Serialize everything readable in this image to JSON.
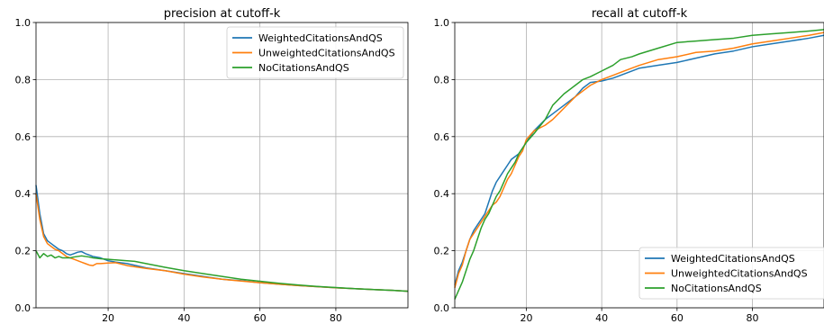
{
  "chart_data": [
    {
      "type": "line",
      "title": "precision at cutoff-k",
      "xlabel": "",
      "ylabel": "",
      "xlim": [
        1,
        99
      ],
      "ylim": [
        0.0,
        1.0
      ],
      "xticks": [
        20,
        40,
        60,
        80
      ],
      "yticks": [
        0.0,
        0.2,
        0.4,
        0.6,
        0.8,
        1.0
      ],
      "grid": true,
      "legend_position": "top-right",
      "series": [
        {
          "name": "WeightedCitationsAndQS",
          "color": "#1f77b4",
          "points": [
            [
              1,
              0.43
            ],
            [
              2,
              0.33
            ],
            [
              3,
              0.26
            ],
            [
              4,
              0.235
            ],
            [
              5,
              0.225
            ],
            [
              6,
              0.215
            ],
            [
              7,
              0.205
            ],
            [
              8,
              0.2
            ],
            [
              9,
              0.19
            ],
            [
              10,
              0.185
            ],
            [
              11,
              0.19
            ],
            [
              12,
              0.195
            ],
            [
              13,
              0.197
            ],
            [
              14,
              0.19
            ],
            [
              15,
              0.185
            ],
            [
              16,
              0.18
            ],
            [
              18,
              0.175
            ],
            [
              20,
              0.165
            ],
            [
              22,
              0.16
            ],
            [
              25,
              0.155
            ],
            [
              30,
              0.14
            ],
            [
              35,
              0.13
            ],
            [
              40,
              0.12
            ],
            [
              45,
              0.11
            ],
            [
              50,
              0.1
            ],
            [
              55,
              0.095
            ],
            [
              60,
              0.088
            ],
            [
              65,
              0.083
            ],
            [
              70,
              0.078
            ],
            [
              75,
              0.074
            ],
            [
              80,
              0.07
            ],
            [
              85,
              0.067
            ],
            [
              90,
              0.064
            ],
            [
              95,
              0.061
            ],
            [
              99,
              0.058
            ]
          ]
        },
        {
          "name": "UnweightedCitationsAndQS",
          "color": "#ff7f0e",
          "points": [
            [
              1,
              0.4
            ],
            [
              2,
              0.31
            ],
            [
              3,
              0.25
            ],
            [
              4,
              0.225
            ],
            [
              5,
              0.215
            ],
            [
              6,
              0.205
            ],
            [
              7,
              0.2
            ],
            [
              8,
              0.19
            ],
            [
              9,
              0.18
            ],
            [
              10,
              0.175
            ],
            [
              11,
              0.17
            ],
            [
              12,
              0.165
            ],
            [
              13,
              0.16
            ],
            [
              14,
              0.155
            ],
            [
              15,
              0.15
            ],
            [
              16,
              0.148
            ],
            [
              17,
              0.155
            ],
            [
              18,
              0.155
            ],
            [
              20,
              0.157
            ],
            [
              22,
              0.158
            ],
            [
              25,
              0.148
            ],
            [
              30,
              0.138
            ],
            [
              35,
              0.13
            ],
            [
              40,
              0.118
            ],
            [
              45,
              0.108
            ],
            [
              50,
              0.1
            ],
            [
              55,
              0.094
            ],
            [
              60,
              0.088
            ],
            [
              65,
              0.083
            ],
            [
              70,
              0.078
            ],
            [
              75,
              0.074
            ],
            [
              80,
              0.07
            ],
            [
              85,
              0.067
            ],
            [
              90,
              0.064
            ],
            [
              95,
              0.061
            ],
            [
              99,
              0.058
            ]
          ]
        },
        {
          "name": "NoCitationsAndQS",
          "color": "#2ca02c",
          "points": [
            [
              1,
              0.2
            ],
            [
              2,
              0.175
            ],
            [
              3,
              0.19
            ],
            [
              4,
              0.18
            ],
            [
              5,
              0.185
            ],
            [
              6,
              0.175
            ],
            [
              7,
              0.18
            ],
            [
              8,
              0.175
            ],
            [
              9,
              0.175
            ],
            [
              10,
              0.175
            ],
            [
              11,
              0.178
            ],
            [
              12,
              0.18
            ],
            [
              13,
              0.182
            ],
            [
              14,
              0.18
            ],
            [
              15,
              0.178
            ],
            [
              16,
              0.175
            ],
            [
              18,
              0.172
            ],
            [
              20,
              0.17
            ],
            [
              22,
              0.168
            ],
            [
              25,
              0.165
            ],
            [
              27,
              0.163
            ],
            [
              30,
              0.155
            ],
            [
              35,
              0.142
            ],
            [
              40,
              0.13
            ],
            [
              45,
              0.12
            ],
            [
              50,
              0.11
            ],
            [
              55,
              0.1
            ],
            [
              60,
              0.093
            ],
            [
              65,
              0.086
            ],
            [
              70,
              0.08
            ],
            [
              75,
              0.075
            ],
            [
              80,
              0.071
            ],
            [
              85,
              0.067
            ],
            [
              90,
              0.064
            ],
            [
              95,
              0.061
            ],
            [
              99,
              0.058
            ]
          ]
        }
      ]
    },
    {
      "type": "line",
      "title": "recall at cutoff-k",
      "xlabel": "",
      "ylabel": "",
      "xlim": [
        1,
        99
      ],
      "ylim": [
        0.0,
        1.0
      ],
      "xticks": [
        20,
        40,
        60,
        80
      ],
      "yticks": [
        0.0,
        0.2,
        0.4,
        0.6,
        0.8,
        1.0
      ],
      "grid": true,
      "legend_position": "bottom-right",
      "series": [
        {
          "name": "WeightedCitationsAndQS",
          "color": "#1f77b4",
          "points": [
            [
              1,
              0.08
            ],
            [
              2,
              0.13
            ],
            [
              3,
              0.16
            ],
            [
              4,
              0.2
            ],
            [
              5,
              0.24
            ],
            [
              6,
              0.27
            ],
            [
              7,
              0.29
            ],
            [
              8,
              0.31
            ],
            [
              9,
              0.33
            ],
            [
              10,
              0.37
            ],
            [
              11,
              0.41
            ],
            [
              12,
              0.44
            ],
            [
              13,
              0.46
            ],
            [
              14,
              0.48
            ],
            [
              15,
              0.5
            ],
            [
              16,
              0.52
            ],
            [
              17,
              0.53
            ],
            [
              18,
              0.54
            ],
            [
              19,
              0.56
            ],
            [
              20,
              0.58
            ],
            [
              22,
              0.62
            ],
            [
              25,
              0.66
            ],
            [
              27,
              0.68
            ],
            [
              30,
              0.71
            ],
            [
              33,
              0.74
            ],
            [
              35,
              0.77
            ],
            [
              37,
              0.79
            ],
            [
              40,
              0.795
            ],
            [
              43,
              0.805
            ],
            [
              45,
              0.815
            ],
            [
              48,
              0.83
            ],
            [
              50,
              0.84
            ],
            [
              55,
              0.85
            ],
            [
              60,
              0.86
            ],
            [
              65,
              0.875
            ],
            [
              70,
              0.89
            ],
            [
              75,
              0.9
            ],
            [
              80,
              0.915
            ],
            [
              85,
              0.925
            ],
            [
              90,
              0.935
            ],
            [
              95,
              0.945
            ],
            [
              99,
              0.955
            ]
          ]
        },
        {
          "name": "UnweightedCitationsAndQS",
          "color": "#ff7f0e",
          "points": [
            [
              1,
              0.07
            ],
            [
              2,
              0.12
            ],
            [
              3,
              0.15
            ],
            [
              4,
              0.2
            ],
            [
              5,
              0.24
            ],
            [
              6,
              0.26
            ],
            [
              7,
              0.28
            ],
            [
              8,
              0.3
            ],
            [
              9,
              0.32
            ],
            [
              10,
              0.34
            ],
            [
              11,
              0.36
            ],
            [
              12,
              0.37
            ],
            [
              13,
              0.39
            ],
            [
              14,
              0.42
            ],
            [
              15,
              0.45
            ],
            [
              16,
              0.47
            ],
            [
              17,
              0.5
            ],
            [
              18,
              0.53
            ],
            [
              19,
              0.55
            ],
            [
              20,
              0.59
            ],
            [
              22,
              0.62
            ],
            [
              25,
              0.64
            ],
            [
              27,
              0.66
            ],
            [
              30,
              0.7
            ],
            [
              33,
              0.74
            ],
            [
              35,
              0.76
            ],
            [
              37,
              0.78
            ],
            [
              40,
              0.8
            ],
            [
              43,
              0.815
            ],
            [
              45,
              0.825
            ],
            [
              48,
              0.84
            ],
            [
              50,
              0.85
            ],
            [
              55,
              0.87
            ],
            [
              60,
              0.88
            ],
            [
              65,
              0.895
            ],
            [
              70,
              0.9
            ],
            [
              75,
              0.91
            ],
            [
              80,
              0.925
            ],
            [
              85,
              0.935
            ],
            [
              90,
              0.945
            ],
            [
              95,
              0.955
            ],
            [
              99,
              0.965
            ]
          ]
        },
        {
          "name": "NoCitationsAndQS",
          "color": "#2ca02c",
          "points": [
            [
              1,
              0.03
            ],
            [
              2,
              0.06
            ],
            [
              3,
              0.09
            ],
            [
              4,
              0.13
            ],
            [
              5,
              0.17
            ],
            [
              6,
              0.2
            ],
            [
              7,
              0.24
            ],
            [
              8,
              0.28
            ],
            [
              9,
              0.31
            ],
            [
              10,
              0.33
            ],
            [
              11,
              0.36
            ],
            [
              12,
              0.39
            ],
            [
              13,
              0.41
            ],
            [
              14,
              0.44
            ],
            [
              15,
              0.47
            ],
            [
              16,
              0.49
            ],
            [
              17,
              0.51
            ],
            [
              18,
              0.54
            ],
            [
              19,
              0.56
            ],
            [
              20,
              0.58
            ],
            [
              22,
              0.61
            ],
            [
              25,
              0.66
            ],
            [
              27,
              0.71
            ],
            [
              30,
              0.75
            ],
            [
              33,
              0.78
            ],
            [
              35,
              0.8
            ],
            [
              37,
              0.81
            ],
            [
              40,
              0.83
            ],
            [
              43,
              0.85
            ],
            [
              45,
              0.87
            ],
            [
              48,
              0.88
            ],
            [
              50,
              0.89
            ],
            [
              55,
              0.91
            ],
            [
              60,
              0.93
            ],
            [
              65,
              0.935
            ],
            [
              70,
              0.94
            ],
            [
              75,
              0.945
            ],
            [
              80,
              0.955
            ],
            [
              85,
              0.96
            ],
            [
              90,
              0.965
            ],
            [
              95,
              0.97
            ],
            [
              99,
              0.975
            ]
          ]
        }
      ]
    }
  ]
}
